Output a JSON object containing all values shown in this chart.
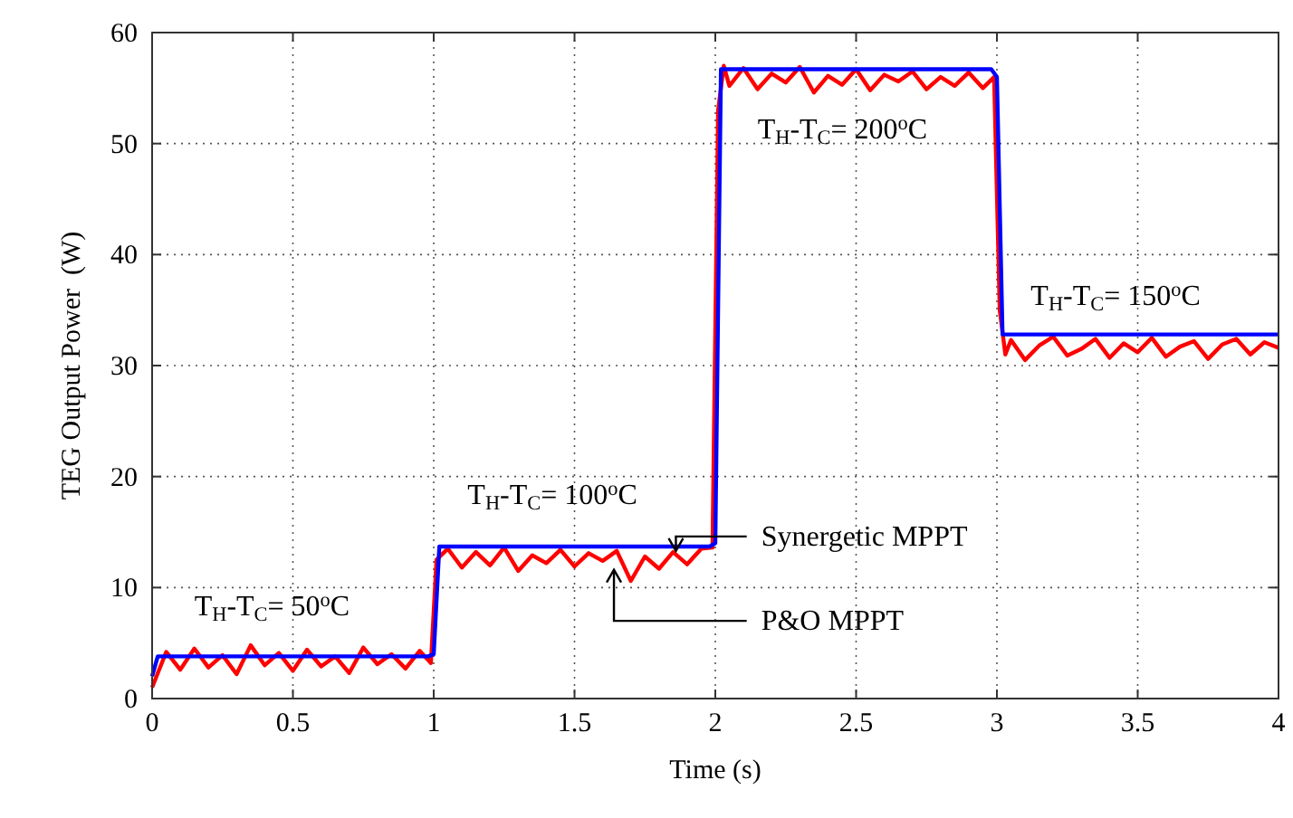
{
  "chart_data": {
    "type": "line",
    "xlabel": "Time (s)",
    "ylabel": "TEG Output Power  (W)",
    "xlim": [
      0,
      4
    ],
    "ylim": [
      0,
      60
    ],
    "xticks": [
      0,
      0.5,
      1,
      1.5,
      2,
      2.5,
      3,
      3.5,
      4
    ],
    "yticks": [
      0,
      10,
      20,
      30,
      40,
      50,
      60
    ],
    "grid": true,
    "marker": "none",
    "line_style": "solid",
    "annotations": [
      "T$_{H}$-T$_{C}$= 50$^{o}$C",
      "T$_{H}$-T$_{C}$= 100$^{o}$C",
      "T$_{H}$-T$_{C}$= 200$^{o}$C",
      "T$_{H}$-T$_{C}$= 150$^{o}$C"
    ],
    "series": [
      {
        "name": "P&O MPPT",
        "color": "#ff0000",
        "x": [
          0,
          0.05,
          0.1,
          0.15,
          0.2,
          0.25,
          0.3,
          0.35,
          0.4,
          0.45,
          0.5,
          0.55,
          0.6,
          0.65,
          0.7,
          0.75,
          0.8,
          0.85,
          0.9,
          0.95,
          0.99,
          1.01,
          1.05,
          1.1,
          1.15,
          1.2,
          1.25,
          1.3,
          1.35,
          1.4,
          1.45,
          1.5,
          1.55,
          1.6,
          1.65,
          1.7,
          1.75,
          1.8,
          1.85,
          1.9,
          1.95,
          1.99,
          2.01,
          2.03,
          2.05,
          2.1,
          2.15,
          2.2,
          2.25,
          2.3,
          2.35,
          2.4,
          2.45,
          2.5,
          2.55,
          2.6,
          2.65,
          2.7,
          2.75,
          2.8,
          2.85,
          2.9,
          2.95,
          2.99,
          3.01,
          3.03,
          3.05,
          3.1,
          3.15,
          3.2,
          3.25,
          3.3,
          3.35,
          3.4,
          3.45,
          3.5,
          3.55,
          3.6,
          3.65,
          3.7,
          3.75,
          3.8,
          3.85,
          3.9,
          3.95,
          4.0
        ],
        "values": [
          1,
          4.2,
          2.6,
          4.5,
          2.8,
          3.9,
          2.2,
          4.8,
          3.0,
          4.1,
          2.5,
          4.4,
          2.9,
          3.8,
          2.3,
          4.6,
          3.1,
          4.0,
          2.7,
          4.3,
          3.2,
          12.5,
          13.5,
          11.8,
          13.2,
          12.0,
          13.6,
          11.5,
          12.9,
          12.2,
          13.4,
          11.9,
          13.1,
          12.4,
          13.3,
          10.6,
          12.8,
          11.7,
          13.2,
          12.1,
          13.5,
          13.6,
          53,
          57,
          55.2,
          56.8,
          54.9,
          56.3,
          55.5,
          56.9,
          54.6,
          56.1,
          55.3,
          56.7,
          54.8,
          56.2,
          55.6,
          56.5,
          54.9,
          56.0,
          55.2,
          56.4,
          55.0,
          56,
          35,
          31,
          32.3,
          30.5,
          31.8,
          32.6,
          30.9,
          31.5,
          32.4,
          30.7,
          32.0,
          31.2,
          32.5,
          30.8,
          31.7,
          32.2,
          30.6,
          31.9,
          32.4,
          31.0,
          32.1,
          31.6
        ]
      },
      {
        "name": "Synergetic MPPT",
        "color": "#0000ff",
        "x": [
          0,
          0.02,
          0.98,
          1.0,
          1.02,
          1.98,
          2.0,
          2.02,
          2.98,
          3.0,
          3.02,
          4
        ],
        "values": [
          2,
          3.8,
          3.8,
          4,
          13.7,
          13.7,
          14,
          56.7,
          56.7,
          56,
          32.8,
          32.8
        ]
      }
    ]
  }
}
